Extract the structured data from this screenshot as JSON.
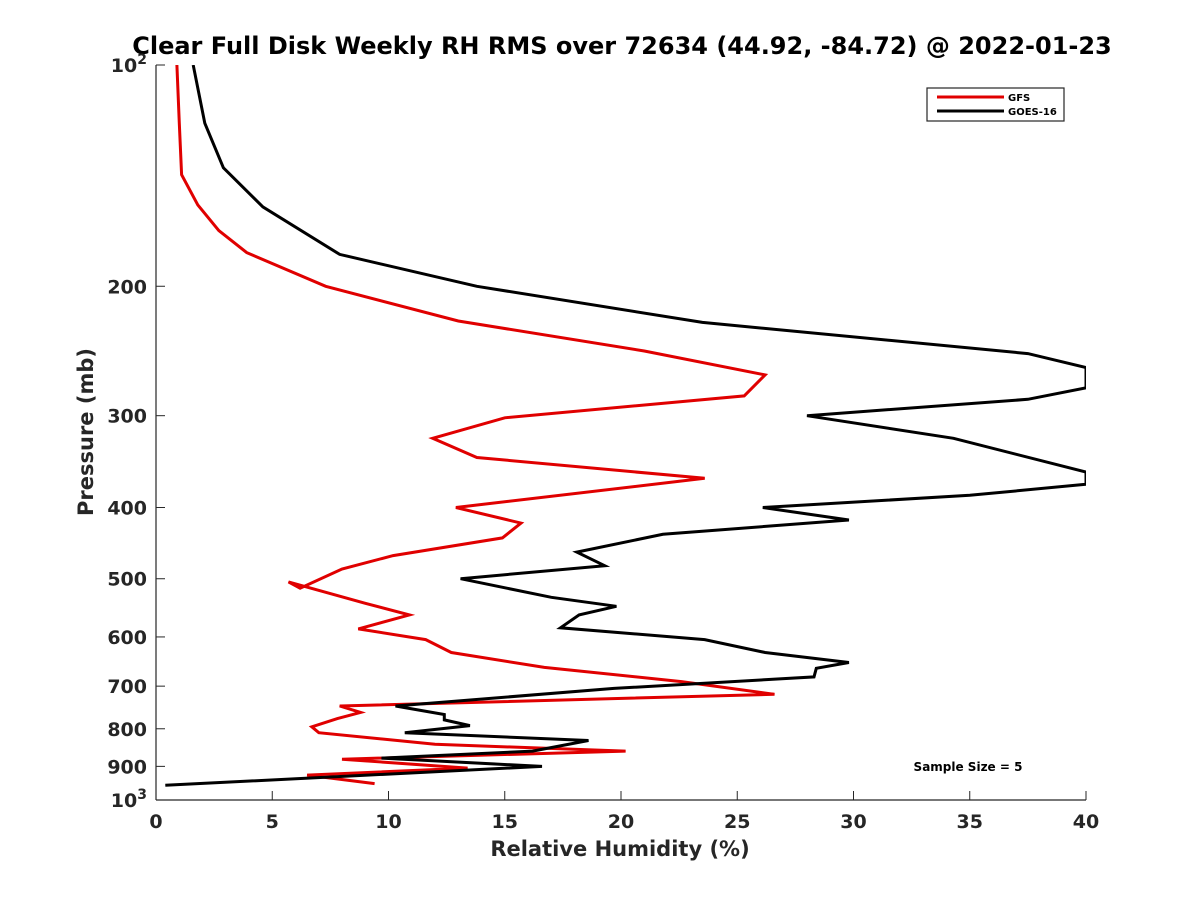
{
  "chart_data": {
    "type": "line",
    "title": "Clear Full Disk Weekly RH RMS over 72634 (44.92, -84.72) @ 2022-01-23",
    "xlabel": "Relative Humidity (%)",
    "ylabel": "Pressure (mb)",
    "xlim": [
      0,
      40
    ],
    "ylim": [
      100,
      1000
    ],
    "yscale": "log",
    "y_reversed": true,
    "xticks": [
      0,
      5,
      10,
      15,
      20,
      25,
      30,
      35,
      40
    ],
    "xtick_labels": [
      "0",
      "5",
      "10",
      "15",
      "20",
      "25",
      "30",
      "35",
      "40"
    ],
    "yticks": [
      100,
      200,
      300,
      400,
      500,
      600,
      700,
      800,
      900,
      1000
    ],
    "ytick_labels": [
      {
        "base": "10",
        "sup": "2"
      },
      {
        "base": "200",
        "sup": ""
      },
      {
        "base": "300",
        "sup": ""
      },
      {
        "base": "400",
        "sup": ""
      },
      {
        "base": "500",
        "sup": ""
      },
      {
        "base": "600",
        "sup": ""
      },
      {
        "base": "700",
        "sup": ""
      },
      {
        "base": "800",
        "sup": ""
      },
      {
        "base": "900",
        "sup": ""
      },
      {
        "base": "10",
        "sup": "3"
      }
    ],
    "legend_position": "top-right",
    "annotation": "Sample Size = 5",
    "series": [
      {
        "name": "GFS",
        "color": "#e00000",
        "x": [
          0.9,
          1.0,
          1.1,
          1.8,
          2.7,
          3.9,
          7.3,
          13.0,
          21.0,
          26.2,
          25.3,
          15.0,
          11.9,
          13.8,
          23.6,
          12.9,
          15.7,
          14.9,
          10.2,
          8.0,
          6.2,
          5.7,
          9.0,
          10.9,
          8.7,
          11.6,
          12.7,
          16.7,
          22.6,
          26.6,
          7.9,
          8.8,
          7.8,
          6.7,
          7.0,
          12.0,
          20.2,
          8.0,
          13.4,
          6.5,
          9.4
        ],
        "y": [
          100,
          120,
          141,
          155,
          168,
          180,
          200,
          223,
          245,
          264,
          282,
          302,
          322,
          342,
          365,
          400,
          420,
          440,
          465,
          485,
          515,
          505,
          540,
          560,
          585,
          605,
          630,
          660,
          690,
          718,
          745,
          760,
          775,
          795,
          810,
          840,
          858,
          880,
          905,
          925,
          950
        ]
      },
      {
        "name": "GOES-16",
        "color": "#000000",
        "x": [
          1.6,
          2.1,
          2.9,
          4.6,
          7.9,
          13.8,
          23.5,
          37.5,
          40.0,
          40.0,
          37.5,
          28.0,
          34.3,
          40.0,
          40.0,
          35.0,
          26.1,
          29.8,
          21.8,
          18.1,
          19.3,
          13.1,
          17.0,
          19.8,
          18.2,
          17.4,
          23.6,
          26.2,
          29.8,
          28.4,
          28.3,
          19.7,
          10.3,
          12.4,
          12.4,
          13.5,
          10.7,
          18.6,
          16.2,
          9.7,
          16.6,
          0.4
        ],
        "y": [
          100,
          120,
          138,
          156,
          181,
          200,
          224,
          247,
          258,
          275,
          285,
          300,
          322,
          358,
          372,
          385,
          400,
          416,
          435,
          460,
          480,
          500,
          530,
          545,
          560,
          583,
          605,
          630,
          650,
          662,
          680,
          705,
          745,
          765,
          778,
          792,
          810,
          830,
          858,
          877,
          900,
          955
        ]
      }
    ]
  }
}
